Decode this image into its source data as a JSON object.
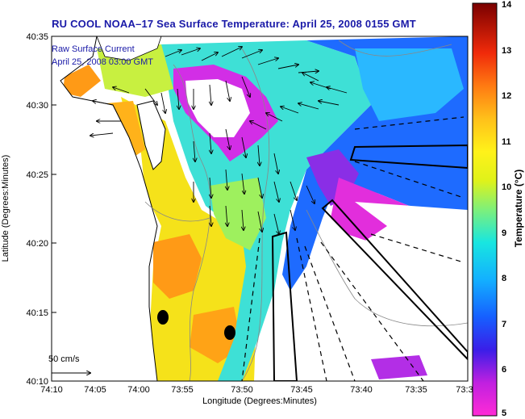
{
  "title": "RU COOL  NOAA–17  Sea Surface Temperature:  April 25, 2008 0155 GMT",
  "legend": {
    "line1": "Raw Surface Current",
    "line2": "April 25, 2008 03:00 GMT"
  },
  "scale": {
    "label": "50 cm/s"
  },
  "axes": {
    "xlabel": "Longitude (Degrees:Minutes)",
    "ylabel": "Latitude (Degrees:Minutes)",
    "xticks": [
      "74:10",
      "74:05",
      "74:00",
      "73:55",
      "73:50",
      "73:45",
      "73:40",
      "73:35",
      "73:3"
    ],
    "yticks": [
      "40:35",
      "40:30",
      "40:25",
      "40:20",
      "40:15",
      "40:10"
    ]
  },
  "colorbar": {
    "label": "Temperature (°C)",
    "min": 5,
    "max": 14,
    "ticks": [
      "14",
      "13",
      "12",
      "11",
      "10",
      "9",
      "8",
      "7",
      "6",
      "5"
    ]
  },
  "colors": {
    "land": "#ffffff",
    "coast": "#000000",
    "title": "#1a1aa8"
  }
}
